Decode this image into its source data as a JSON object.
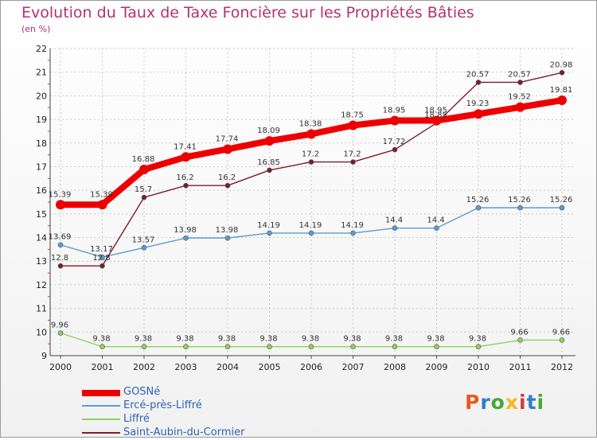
{
  "header": {
    "title": "Evolution du Taux de Taxe Foncière sur les Propriétés Bâties",
    "unit": "(en %)"
  },
  "logo": {
    "text": "Proxiti",
    "colors": [
      "#e85a1c",
      "#2f7fc8",
      "#45a83a",
      "#f2b81e",
      "#d33a3a",
      "#2f7fc8",
      "#45a83a"
    ]
  },
  "chart_data": {
    "type": "line",
    "title": "Evolution du Taux de Taxe Foncière sur les Propriétés Bâties",
    "ylabel": "(en %)",
    "xlabel": "",
    "ylim": [
      9,
      22
    ],
    "yticks": [
      "9",
      "10",
      "11",
      "12",
      "13",
      "14",
      "15",
      "16",
      "17",
      "18",
      "19",
      "20",
      "21",
      "22"
    ],
    "categories": [
      "2000",
      "2001",
      "2002",
      "2003",
      "2004",
      "2005",
      "2006",
      "2007",
      "2008",
      "2009",
      "2010",
      "2011",
      "2012"
    ],
    "grid": true,
    "series": [
      {
        "name": "GOSNé",
        "color": "#ee0000",
        "weight": "thick",
        "values": [
          15.39,
          15.39,
          16.88,
          17.41,
          17.74,
          18.09,
          18.38,
          18.75,
          18.95,
          18.95,
          19.23,
          19.52,
          19.81
        ],
        "labels": [
          "15.39",
          "15.39",
          "16.88",
          "17.41",
          "17.74",
          "18.09",
          "18.38",
          "18.75",
          "18.95",
          "18.95",
          "19.23",
          "19.52",
          "19.81"
        ]
      },
      {
        "name": "Ercé-près-Liffré",
        "color": "#5c9bd1",
        "weight": "thin",
        "values": [
          13.69,
          13.17,
          13.57,
          13.98,
          13.98,
          14.19,
          14.19,
          14.19,
          14.4,
          14.4,
          15.26,
          15.26,
          15.26
        ],
        "labels": [
          "13.69",
          "13.17",
          "13.57",
          "13.98",
          "13.98",
          "14.19",
          "14.19",
          "14.19",
          "14.4",
          "14.4",
          "15.26",
          "15.26",
          "15.26"
        ]
      },
      {
        "name": "Liffré",
        "color": "#88d45c",
        "weight": "thin",
        "values": [
          9.96,
          9.38,
          9.38,
          9.38,
          9.38,
          9.38,
          9.38,
          9.38,
          9.38,
          9.38,
          9.38,
          9.66,
          9.66
        ],
        "labels": [
          "9.96",
          "9.38",
          "9.38",
          "9.38",
          "9.38",
          "9.38",
          "9.38",
          "9.38",
          "9.38",
          "9.38",
          "9.38",
          "9.66",
          "9.66"
        ]
      },
      {
        "name": "Saint-Aubin-du-Cormier",
        "color": "#7a1e2a",
        "weight": "thin",
        "values": [
          12.8,
          12.8,
          15.7,
          16.2,
          16.2,
          16.85,
          17.2,
          17.2,
          17.72,
          18.85,
          20.57,
          20.57,
          20.98
        ],
        "labels": [
          "12.8",
          "12.8",
          "15.7",
          "16.2",
          "16.2",
          "16.85",
          "17.2",
          "17.2",
          "17.72",
          "18.85",
          "20.57",
          "20.57",
          "20.98"
        ]
      }
    ]
  }
}
